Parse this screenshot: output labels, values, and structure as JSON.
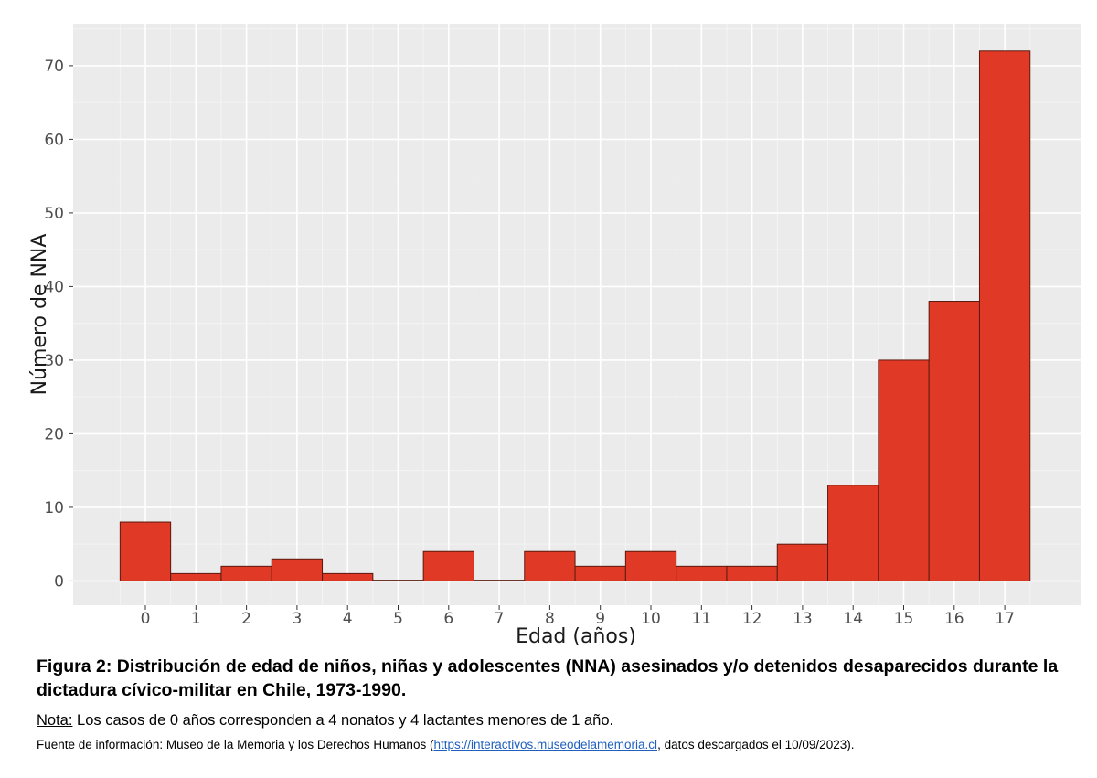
{
  "chart_data": {
    "type": "bar",
    "categories": [
      "0",
      "1",
      "2",
      "3",
      "4",
      "5",
      "6",
      "7",
      "8",
      "9",
      "10",
      "11",
      "12",
      "13",
      "14",
      "15",
      "16",
      "17"
    ],
    "values": [
      8,
      1,
      2,
      3,
      1,
      0,
      4,
      0,
      4,
      2,
      4,
      2,
      2,
      5,
      13,
      30,
      38,
      72
    ],
    "xlabel": "Edad (años)",
    "ylabel": "Número de NNA",
    "ylim": [
      -3.3,
      75.7
    ],
    "yticks": [
      0,
      10,
      20,
      30,
      40,
      50,
      60,
      70
    ],
    "grid": true,
    "bar_color": "#e03a26",
    "bar_edge_color": "#5a1a10",
    "panel_color": "#ebebeb"
  },
  "caption": {
    "title": "Figura 2: Distribución de edad de niños, niñas y adolescentes (NNA) asesinados y/o detenidos desaparecidos durante la dictadura cívico-militar en Chile, 1973-1990.",
    "nota_label": "Nota:",
    "nota_text": " Los casos de 0 años corresponden a 4 nonatos y 4 lactantes menores de 1 año.",
    "fuente_prefix": "Fuente de información: Museo de la Memoria y los Derechos Humanos (",
    "fuente_link": "https://interactivos.museodelamemoria.cl",
    "fuente_suffix": ", datos descargados el 10/09/2023)."
  }
}
